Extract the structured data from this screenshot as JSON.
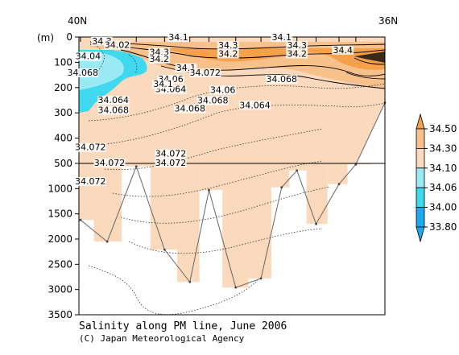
{
  "chart_data": {
    "type": "contour-section",
    "title": "Salinity along PM line, June 2006",
    "credit": "(C) Japan Meteorological Agency",
    "x_left_label": "40N",
    "x_right_label": "36N",
    "y_unit": "(m)",
    "y_ticks_upper": [
      "0",
      "100",
      "200",
      "300",
      "400",
      "500"
    ],
    "y_ticks_lower": [
      "1000",
      "1500",
      "2000",
      "2500",
      "3000",
      "3500"
    ],
    "depth_upper_range": [
      0,
      500
    ],
    "depth_lower_range": [
      500,
      3500
    ],
    "colorbar": {
      "levels": [
        "34.50",
        "34.30",
        "34.10",
        "34.06",
        "34.00",
        "33.80"
      ],
      "colors": [
        "#f5a04a",
        "#f8c08a",
        "#fbd9bd",
        "#9aeaf5",
        "#3fd8ee",
        "#1ea8f0"
      ]
    },
    "stations": [
      {
        "lat": 39.98,
        "bottom": 1620
      },
      {
        "lat": 39.63,
        "bottom": 2050
      },
      {
        "lat": 39.25,
        "bottom": 560
      },
      {
        "lat": 38.88,
        "bottom": 2210
      },
      {
        "lat": 38.55,
        "bottom": 2850
      },
      {
        "lat": 38.3,
        "bottom": 1030
      },
      {
        "lat": 37.95,
        "bottom": 2960
      },
      {
        "lat": 37.62,
        "bottom": 2780
      },
      {
        "lat": 37.35,
        "bottom": 975
      },
      {
        "lat": 37.15,
        "bottom": 640
      },
      {
        "lat": 36.9,
        "bottom": 1700
      },
      {
        "lat": 36.6,
        "bottom": 910
      },
      {
        "lat": 36.38,
        "bottom": 520
      },
      {
        "lat": 36.0,
        "bottom": 260
      }
    ],
    "contour_labels": [
      {
        "text": "34.04",
        "lat": 39.88,
        "depth": 85
      },
      {
        "text": "34.3",
        "lat": 38.95,
        "depth": 68
      },
      {
        "text": "34.2",
        "lat": 38.95,
        "depth": 95
      },
      {
        "text": "34.3",
        "lat": 38.05,
        "depth": 42
      },
      {
        "text": "34.2",
        "lat": 38.05,
        "depth": 75
      },
      {
        "text": "34.3",
        "lat": 37.15,
        "depth": 42
      },
      {
        "text": "34.2",
        "lat": 37.15,
        "depth": 75
      },
      {
        "text": "34.4",
        "lat": 36.55,
        "depth": 60
      },
      {
        "text": "34.1",
        "lat": 38.6,
        "depth": 130
      },
      {
        "text": "34.072",
        "lat": 38.35,
        "depth": 150
      },
      {
        "text": "34.06",
        "lat": 38.8,
        "depth": 175
      },
      {
        "text": "34.064",
        "lat": 38.8,
        "depth": 215
      },
      {
        "text": "34.068",
        "lat": 37.35,
        "depth": 175
      },
      {
        "text": "34.064",
        "lat": 39.55,
        "depth": 258
      },
      {
        "text": "34.068",
        "lat": 39.55,
        "depth": 298
      },
      {
        "text": "34.06",
        "lat": 38.12,
        "depth": 218
      },
      {
        "text": "34.068",
        "lat": 38.25,
        "depth": 260
      },
      {
        "text": "34.068",
        "lat": 38.55,
        "depth": 292
      },
      {
        "text": "34.064",
        "lat": 37.7,
        "depth": 278
      },
      {
        "text": "34.072",
        "lat": 39.85,
        "depth": 445
      },
      {
        "text": "34.072",
        "lat": 38.8,
        "depth": 470
      },
      {
        "text": "34.072",
        "lat": 38.8,
        "depth": 530
      },
      {
        "text": "34.072",
        "lat": 39.6,
        "depth": 530
      },
      {
        "text": "34.072",
        "lat": 39.85,
        "depth": 900
      },
      {
        "text": "34.1",
        "lat": 38.9,
        "depth": 195
      },
      {
        "text": "34.068",
        "lat": 39.95,
        "depth": 150
      }
    ],
    "top_labels": [
      {
        "text": "34.3",
        "lat": 39.7,
        "depth": 25
      },
      {
        "text": "34.02",
        "lat": 39.5,
        "depth": 40
      },
      {
        "text": "34.1",
        "lat": 38.7,
        "depth": 10
      },
      {
        "text": "34.1",
        "lat": 37.35,
        "depth": 10
      }
    ]
  }
}
